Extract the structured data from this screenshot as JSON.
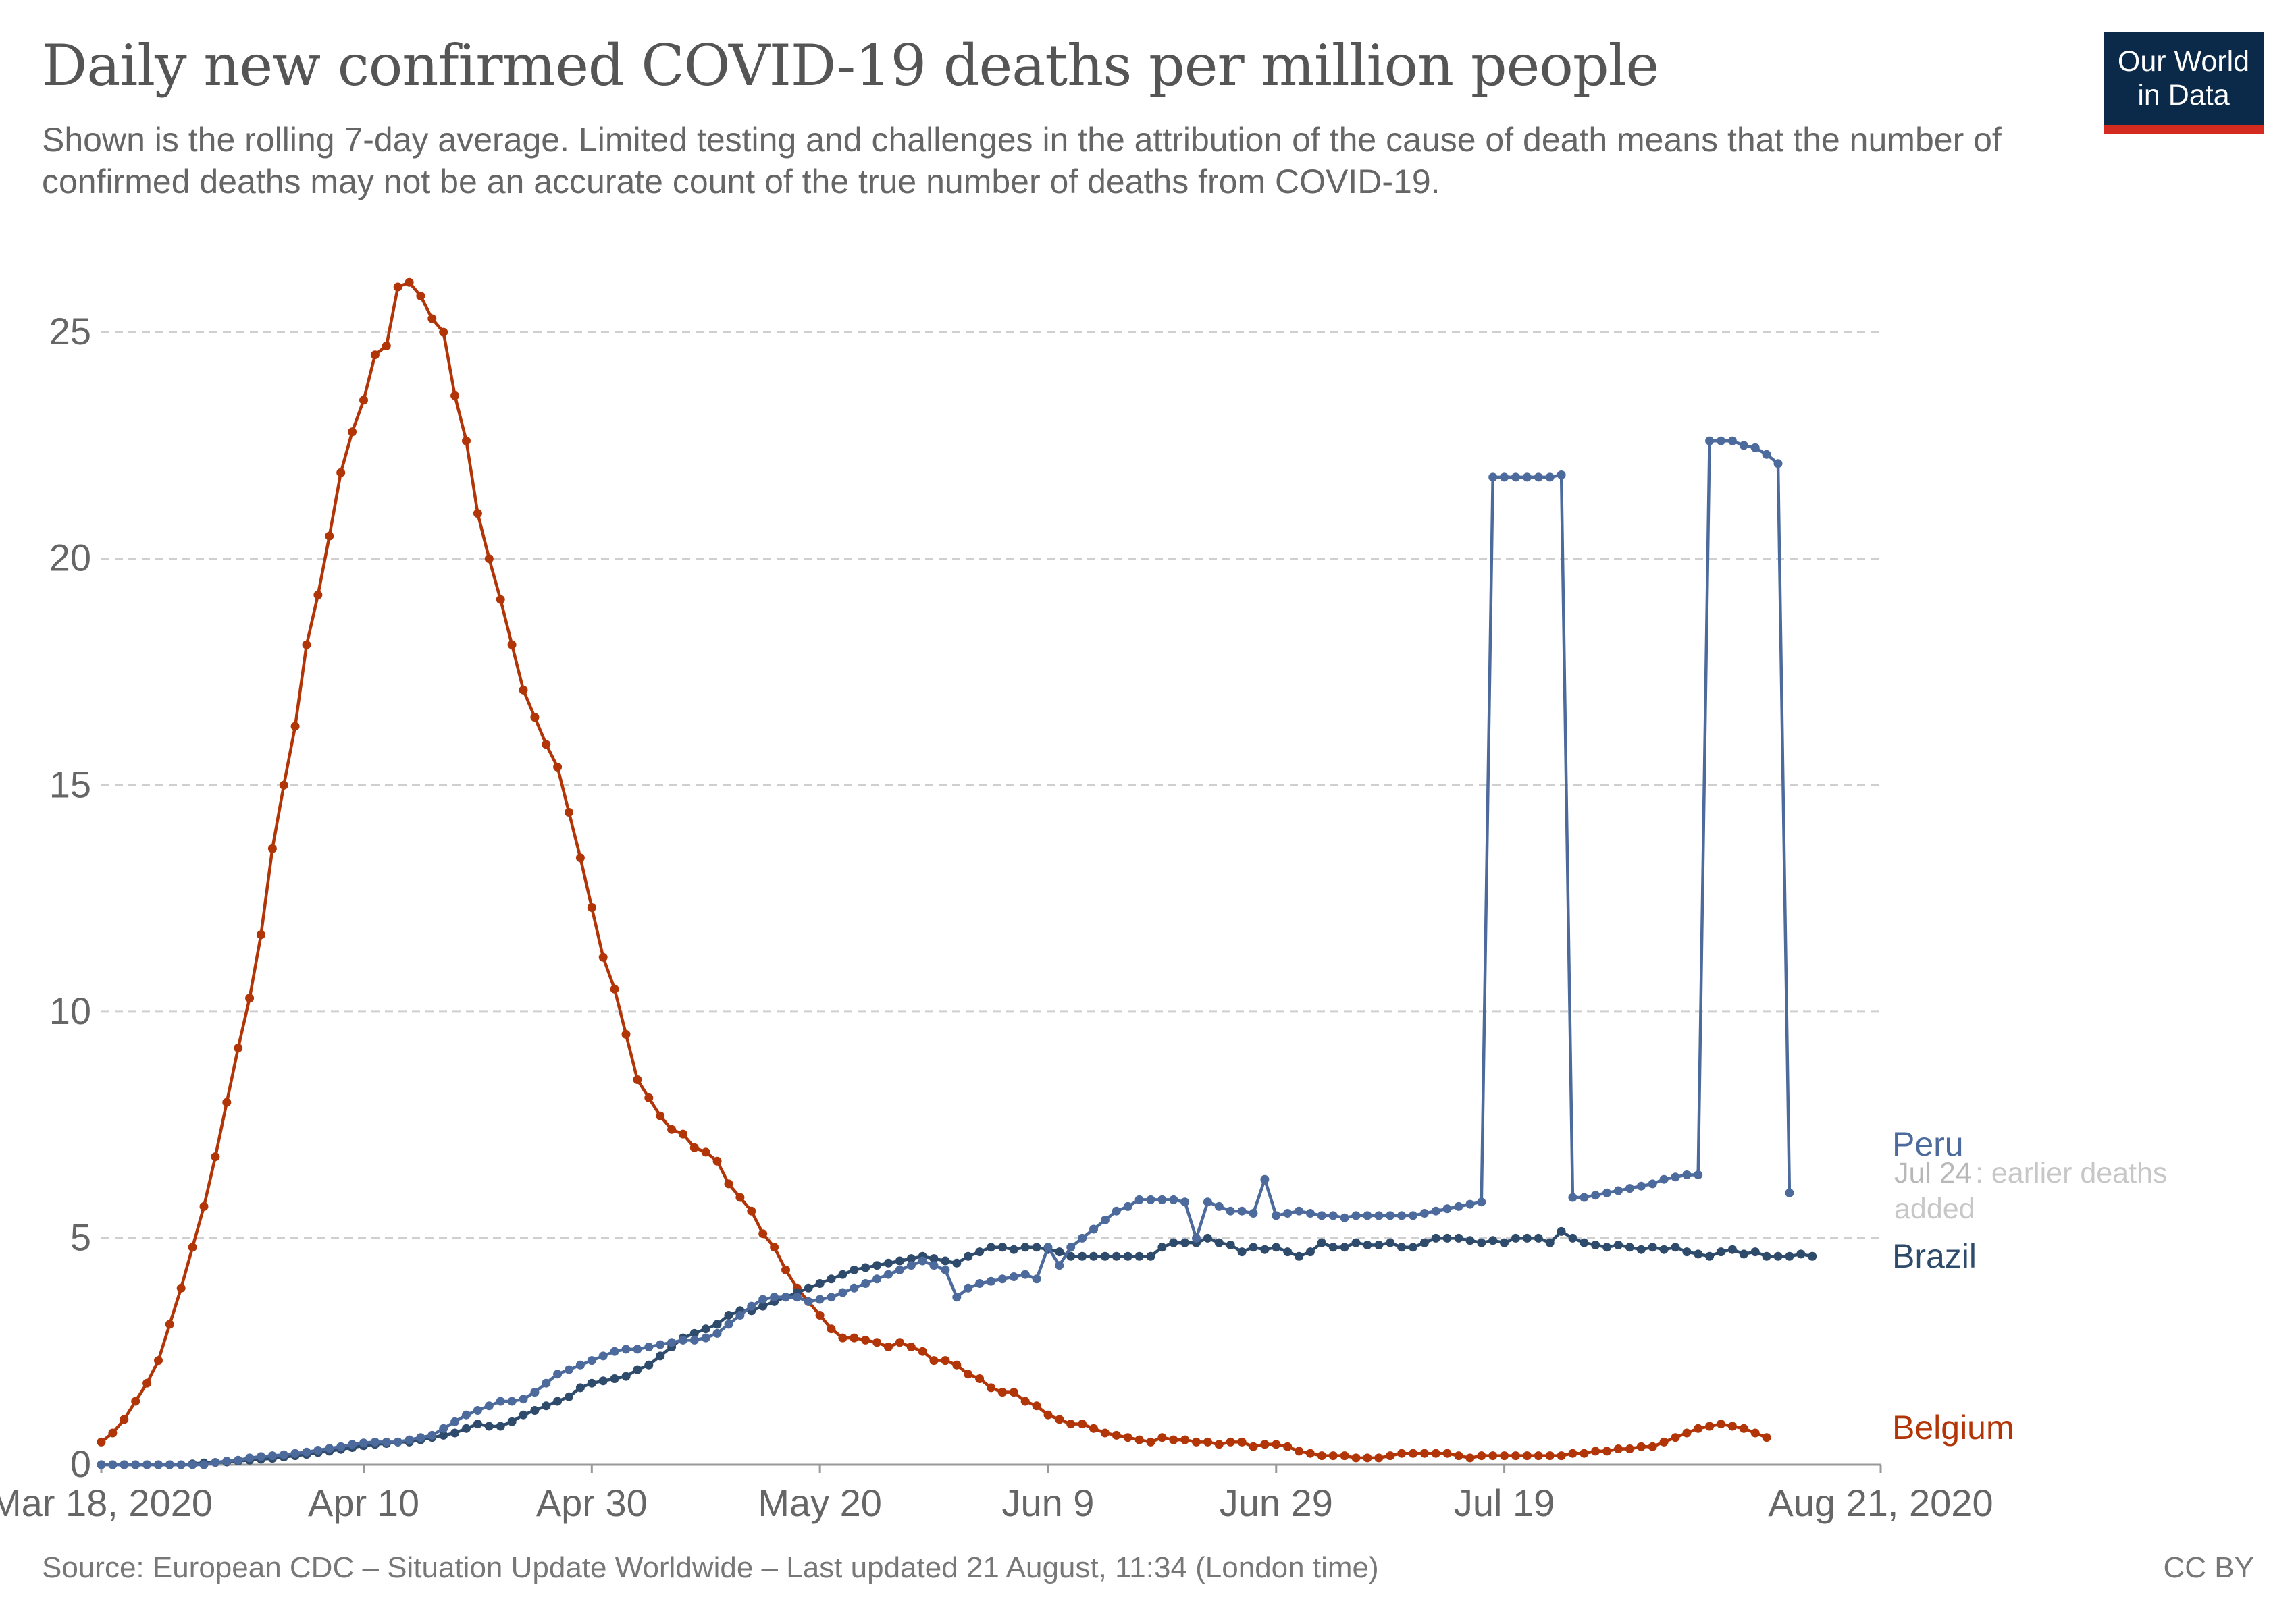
{
  "header": {
    "title": "Daily new confirmed COVID-19 deaths per million people",
    "subtitle": "Shown is the rolling 7-day average. Limited testing and challenges in the attribution of the cause of death means that the number of confirmed deaths may not be an accurate count of the true number of deaths from COVID-19."
  },
  "logo": {
    "line1": "Our World",
    "line2": "in Data",
    "bg_color": "#0b2a4a",
    "accent_color": "#d42b21"
  },
  "footer": {
    "source": "Source: European CDC – Situation Update Worldwide – Last updated 21 August, 11:34 (London time)",
    "license": "CC BY"
  },
  "chart_data": {
    "type": "line",
    "title": "Daily new confirmed COVID-19 deaths per million people",
    "xlabel": "",
    "ylabel": "",
    "x_start": "2020-03-18",
    "x_end": "2020-08-21",
    "xlim": [
      "2020-03-18",
      "2020-08-21"
    ],
    "ylim": [
      0,
      26
    ],
    "grid": true,
    "markers": true,
    "x_ticks": [
      {
        "label": "Mar 18, 2020",
        "date": "2020-03-18"
      },
      {
        "label": "Apr 10",
        "date": "2020-04-10"
      },
      {
        "label": "Apr 30",
        "date": "2020-04-30"
      },
      {
        "label": "May 20",
        "date": "2020-05-20"
      },
      {
        "label": "Jun 9",
        "date": "2020-06-09"
      },
      {
        "label": "Jun 29",
        "date": "2020-06-29"
      },
      {
        "label": "Jul 19",
        "date": "2020-07-19"
      },
      {
        "label": "Aug 21, 2020",
        "date": "2020-08-21"
      }
    ],
    "y_ticks": [
      0,
      5,
      10,
      15,
      20,
      25
    ],
    "annotation": {
      "date_label": "Jul 24",
      "text": ": earlier deaths added"
    },
    "series": [
      {
        "name": "Belgium",
        "color": "#b13507",
        "values": [
          0.5,
          0.7,
          1.0,
          1.4,
          1.8,
          2.3,
          3.1,
          3.9,
          4.8,
          5.7,
          6.8,
          8.0,
          9.2,
          10.3,
          11.7,
          13.6,
          15.0,
          16.3,
          18.1,
          19.2,
          20.5,
          21.9,
          22.8,
          23.5,
          24.5,
          24.7,
          26.0,
          26.1,
          25.8,
          25.3,
          25.0,
          23.6,
          22.6,
          21.0,
          20.0,
          19.1,
          18.1,
          17.1,
          16.5,
          15.9,
          15.4,
          14.4,
          13.4,
          12.3,
          11.2,
          10.5,
          9.5,
          8.5,
          8.1,
          7.7,
          7.4,
          7.3,
          7.0,
          6.9,
          6.7,
          6.2,
          5.9,
          5.6,
          5.1,
          4.8,
          4.3,
          3.9,
          3.6,
          3.3,
          3.0,
          2.8,
          2.8,
          2.75,
          2.7,
          2.6,
          2.7,
          2.6,
          2.5,
          2.3,
          2.3,
          2.2,
          2.0,
          1.9,
          1.7,
          1.6,
          1.6,
          1.4,
          1.3,
          1.1,
          1.0,
          0.9,
          0.9,
          0.8,
          0.7,
          0.65,
          0.6,
          0.55,
          0.5,
          0.6,
          0.55,
          0.55,
          0.5,
          0.5,
          0.45,
          0.5,
          0.5,
          0.4,
          0.45,
          0.45,
          0.4,
          0.3,
          0.25,
          0.2,
          0.2,
          0.2,
          0.15,
          0.15,
          0.15,
          0.2,
          0.25,
          0.25,
          0.25,
          0.25,
          0.25,
          0.2,
          0.15,
          0.2,
          0.2,
          0.2,
          0.2,
          0.2,
          0.2,
          0.2,
          0.2,
          0.25,
          0.25,
          0.3,
          0.3,
          0.35,
          0.35,
          0.4,
          0.4,
          0.5,
          0.6,
          0.7,
          0.8,
          0.85,
          0.9,
          0.85,
          0.8,
          0.7,
          0.6
        ]
      },
      {
        "name": "Brazil",
        "color": "#2f4b6b",
        "values": [
          0.0,
          0.0,
          0.0,
          0.0,
          0.0,
          0.0,
          0.0,
          0.0,
          0.02,
          0.04,
          0.05,
          0.06,
          0.08,
          0.1,
          0.12,
          0.14,
          0.17,
          0.2,
          0.23,
          0.27,
          0.3,
          0.34,
          0.38,
          0.42,
          0.45,
          0.47,
          0.5,
          0.5,
          0.55,
          0.6,
          0.65,
          0.7,
          0.8,
          0.9,
          0.85,
          0.85,
          0.95,
          1.1,
          1.2,
          1.3,
          1.4,
          1.5,
          1.7,
          1.8,
          1.85,
          1.9,
          1.95,
          2.1,
          2.2,
          2.4,
          2.6,
          2.8,
          2.9,
          3.0,
          3.1,
          3.3,
          3.4,
          3.4,
          3.5,
          3.6,
          3.7,
          3.8,
          3.9,
          4.0,
          4.1,
          4.2,
          4.3,
          4.35,
          4.4,
          4.45,
          4.5,
          4.55,
          4.6,
          4.55,
          4.5,
          4.45,
          4.6,
          4.7,
          4.8,
          4.8,
          4.75,
          4.8,
          4.8,
          4.75,
          4.7,
          4.6,
          4.6,
          4.6,
          4.6,
          4.6,
          4.6,
          4.6,
          4.6,
          4.8,
          4.9,
          4.9,
          4.9,
          5.0,
          4.9,
          4.85,
          4.7,
          4.8,
          4.75,
          4.8,
          4.7,
          4.6,
          4.7,
          4.9,
          4.8,
          4.8,
          4.9,
          4.85,
          4.85,
          4.9,
          4.8,
          4.8,
          4.9,
          5.0,
          5.0,
          5.0,
          4.95,
          4.9,
          4.95,
          4.9,
          5.0,
          5.0,
          5.0,
          4.9,
          5.15,
          5.0,
          4.9,
          4.85,
          4.8,
          4.85,
          4.8,
          4.75,
          4.8,
          4.75,
          4.8,
          4.7,
          4.65,
          4.6,
          4.7,
          4.75,
          4.65,
          4.7,
          4.6,
          4.6,
          4.6,
          4.65,
          4.6
        ]
      },
      {
        "name": "Peru",
        "color": "#4c6a9c",
        "values": [
          0.0,
          0.0,
          0.0,
          0.0,
          0.0,
          0.0,
          0.0,
          0.0,
          0.0,
          0.0,
          0.05,
          0.08,
          0.1,
          0.15,
          0.18,
          0.2,
          0.22,
          0.25,
          0.28,
          0.32,
          0.36,
          0.4,
          0.45,
          0.48,
          0.5,
          0.5,
          0.5,
          0.55,
          0.6,
          0.65,
          0.8,
          0.95,
          1.1,
          1.2,
          1.3,
          1.4,
          1.4,
          1.45,
          1.6,
          1.8,
          2.0,
          2.1,
          2.2,
          2.3,
          2.4,
          2.5,
          2.55,
          2.55,
          2.6,
          2.65,
          2.7,
          2.75,
          2.75,
          2.8,
          2.9,
          3.1,
          3.3,
          3.5,
          3.65,
          3.7,
          3.7,
          3.7,
          3.6,
          3.65,
          3.7,
          3.8,
          3.9,
          4.0,
          4.1,
          4.2,
          4.3,
          4.4,
          4.5,
          4.4,
          4.3,
          3.7,
          3.9,
          4.0,
          4.05,
          4.1,
          4.15,
          4.2,
          4.1,
          4.8,
          4.4,
          4.8,
          5.0,
          5.2,
          5.4,
          5.6,
          5.7,
          5.85,
          5.85,
          5.85,
          5.85,
          5.8,
          5.0,
          5.8,
          5.7,
          5.6,
          5.6,
          5.55,
          6.3,
          5.5,
          5.55,
          5.6,
          5.55,
          5.5,
          5.5,
          5.45,
          5.5,
          5.5,
          5.5,
          5.5,
          5.5,
          5.5,
          5.55,
          5.6,
          5.65,
          5.7,
          5.75,
          5.8,
          21.8,
          21.8,
          21.8,
          21.8,
          21.8,
          21.8,
          21.85,
          5.9,
          5.9,
          5.95,
          6.0,
          6.05,
          6.1,
          6.15,
          6.2,
          6.3,
          6.35,
          6.4,
          6.4,
          22.6,
          22.6,
          22.6,
          22.5,
          22.45,
          22.3,
          22.1,
          6.0
        ]
      }
    ]
  }
}
